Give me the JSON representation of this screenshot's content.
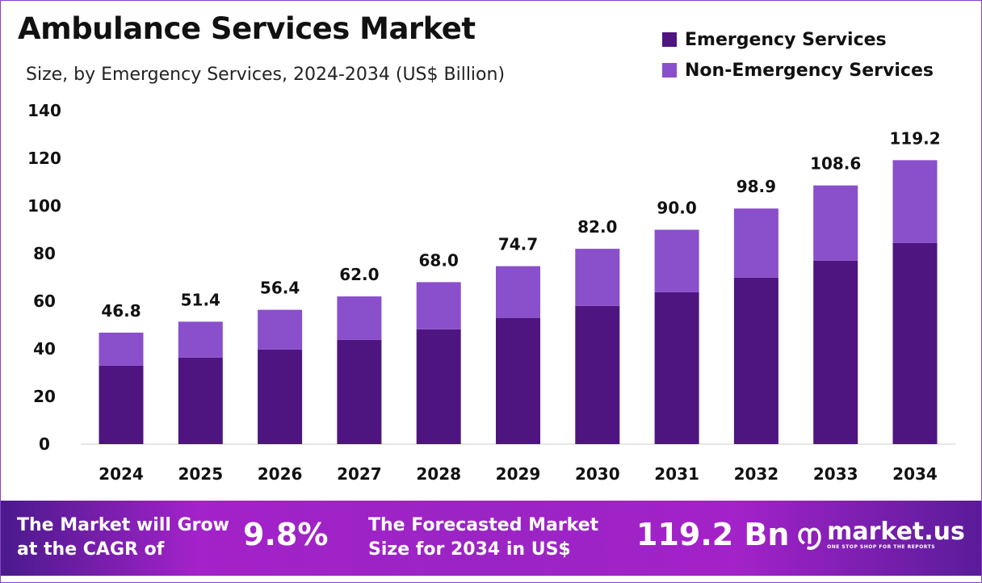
{
  "chart_data": {
    "type": "bar",
    "stacked": true,
    "title": "Ambulance Services Market",
    "subtitle": "Size, by Emergency Services, 2024-2034 (US$ Billion)",
    "categories": [
      "2024",
      "2025",
      "2026",
      "2027",
      "2028",
      "2029",
      "2030",
      "2031",
      "2032",
      "2033",
      "2034"
    ],
    "series": [
      {
        "name": "Emergency Services",
        "color": "#4e1580",
        "values": [
          32.9,
          36.3,
          39.7,
          43.8,
          48.2,
          53.0,
          58.0,
          63.8,
          69.9,
          77.0,
          84.5
        ]
      },
      {
        "name": "Non-Emergency Services",
        "color": "#8a4fcb",
        "values": [
          13.9,
          15.1,
          16.7,
          18.2,
          19.8,
          21.7,
          24.0,
          26.2,
          29.0,
          31.6,
          34.7
        ]
      }
    ],
    "totals": [
      "46.8",
      "51.4",
      "56.4",
      "62.0",
      "68.0",
      "74.7",
      "82.0",
      "90.0",
      "98.9",
      "108.6",
      "119.2"
    ],
    "ylim": [
      0,
      140
    ],
    "yticks": [
      "0",
      "20",
      "40",
      "60",
      "80",
      "100",
      "120",
      "140"
    ],
    "grid": false,
    "legend": "top-right"
  },
  "banner": {
    "cagr_text_1": "The Market will Grow",
    "cagr_text_2": "at the CAGR of",
    "cagr_value": "9.8%",
    "forecast_text_1": "The Forecasted Market",
    "forecast_text_2": "Size for 2034 in US$",
    "forecast_value": "119.2 Bn",
    "logo_name": "market.us",
    "logo_tagline": "ONE STOP SHOP FOR THE REPORTS"
  }
}
